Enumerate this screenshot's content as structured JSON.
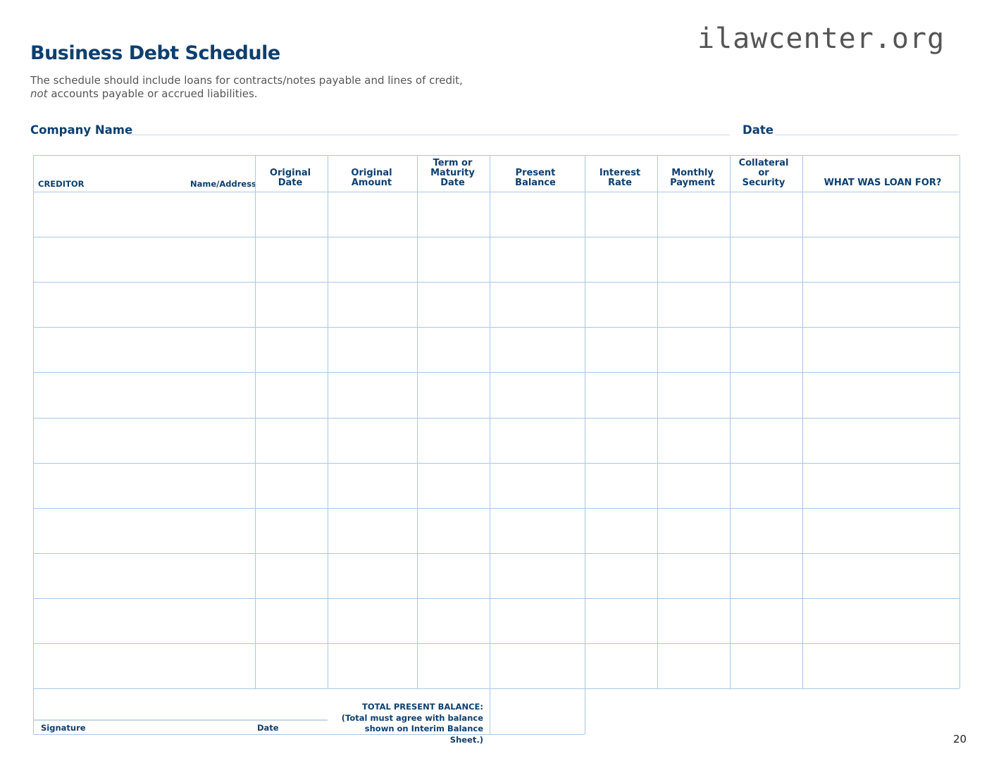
{
  "watermark": "ilawcenter.org",
  "title": "Business Debt Schedule",
  "description": {
    "line1": "The schedule should include loans for contracts/notes payable and lines of credit,",
    "line2_em": "not",
    "line2_rest": " accounts payable or accrued liabilities."
  },
  "company_name_label": "Company Name",
  "date_label": "Date",
  "table": {
    "headers": {
      "creditor": "CREDITOR",
      "name_address": "Name/Address",
      "original_date": "Original Date",
      "original_amount": "Original Amount",
      "term": "Term or Maturity Date",
      "present_balance": "Present Balance",
      "interest_rate": "Interest Rate",
      "monthly_payment": "Monthly Payment",
      "collateral": "Collateral or Security",
      "loan_for": "WHAT WAS LOAN FOR?"
    },
    "row_count": 11
  },
  "footer": {
    "signature": "Signature",
    "date": "Date",
    "total_label": "TOTAL PRESENT BALANCE:",
    "total_note1": "(Total must agree with balance",
    "total_note2": "shown on Interim Balance Sheet.)"
  },
  "page_number": "20",
  "colors": {
    "primary": "#0d3f6f",
    "grid": "#a9c7e5"
  }
}
